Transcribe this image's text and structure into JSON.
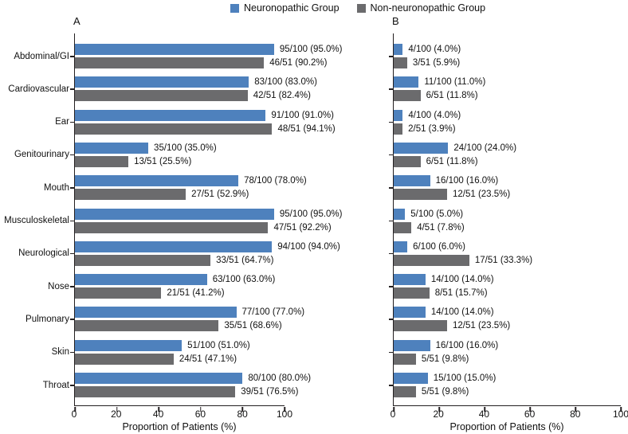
{
  "legend": {
    "items": [
      {
        "label": "Neuronopathic Group",
        "color": "#4e81bd"
      },
      {
        "label": "Non-neuronopathic Group",
        "color": "#6b6b6d"
      }
    ]
  },
  "chart_data": [
    {
      "type": "bar",
      "panel_label": "A",
      "orientation": "horizontal",
      "xlabel": "Proportion of Patients (%)",
      "xlim": [
        0,
        100
      ],
      "xticks": [
        0,
        20,
        40,
        60,
        80,
        100
      ],
      "grid": false,
      "show_category_labels": true,
      "categories": [
        "Abdominal/GI",
        "Cardiovascular",
        "Ear",
        "Genitourinary",
        "Mouth",
        "Musculoskeletal",
        "Neurological",
        "Nose",
        "Pulmonary",
        "Skin",
        "Throat"
      ],
      "series": [
        {
          "name": "Neuronopathic Group",
          "color": "#4e81bd",
          "values": [
            95.0,
            83.0,
            91.0,
            35.0,
            78.0,
            95.0,
            94.0,
            63.0,
            77.0,
            51.0,
            80.0
          ],
          "labels": [
            "95/100 (95.0%)",
            "83/100 (83.0%)",
            "91/100 (91.0%)",
            "35/100 (35.0%)",
            "78/100 (78.0%)",
            "95/100 (95.0%)",
            "94/100 (94.0%)",
            "63/100 (63.0%)",
            "77/100 (77.0%)",
            "51/100 (51.0%)",
            "80/100 (80.0%)"
          ]
        },
        {
          "name": "Non-neuronopathic Group",
          "color": "#6b6b6d",
          "values": [
            90.2,
            82.4,
            94.1,
            25.5,
            52.9,
            92.2,
            64.7,
            41.2,
            68.6,
            47.1,
            76.5
          ],
          "labels": [
            "46/51 (90.2%)",
            "42/51 (82.4%)",
            "48/51 (94.1%)",
            "13/51 (25.5%)",
            "27/51 (52.9%)",
            "47/51 (92.2%)",
            "33/51 (64.7%)",
            "21/51 (41.2%)",
            "35/51 (68.6%)",
            "24/51 (47.1%)",
            "39/51 (76.5%)"
          ]
        }
      ]
    },
    {
      "type": "bar",
      "panel_label": "B",
      "orientation": "horizontal",
      "xlabel": "Proportion of Patients (%)",
      "xlim": [
        0,
        100
      ],
      "xticks": [
        0,
        20,
        40,
        60,
        80,
        100
      ],
      "grid": false,
      "show_category_labels": false,
      "categories": [
        "Abdominal/GI",
        "Cardiovascular",
        "Ear",
        "Genitourinary",
        "Mouth",
        "Musculoskeletal",
        "Neurological",
        "Nose",
        "Pulmonary",
        "Skin",
        "Throat"
      ],
      "series": [
        {
          "name": "Neuronopathic Group",
          "color": "#4e81bd",
          "values": [
            4.0,
            11.0,
            4.0,
            24.0,
            16.0,
            5.0,
            6.0,
            14.0,
            14.0,
            16.0,
            15.0
          ],
          "labels": [
            "4/100 (4.0%)",
            "11/100 (11.0%)",
            "4/100 (4.0%)",
            "24/100 (24.0%)",
            "16/100 (16.0%)",
            "5/100 (5.0%)",
            "6/100 (6.0%)",
            "14/100 (14.0%)",
            "14/100 (14.0%)",
            "16/100 (16.0%)",
            "15/100 (15.0%)"
          ]
        },
        {
          "name": "Non-neuronopathic Group",
          "color": "#6b6b6d",
          "values": [
            5.9,
            11.8,
            3.9,
            11.8,
            23.5,
            7.8,
            33.3,
            15.7,
            23.5,
            9.8,
            9.8
          ],
          "labels": [
            "3/51 (5.9%)",
            "6/51 (11.8%)",
            "2/51 (3.9%)",
            "6/51 (11.8%)",
            "12/51 (23.5%)",
            "4/51 (7.8%)",
            "17/51 (33.3%)",
            "8/51 (15.7%)",
            "12/51 (23.5%)",
            "5/51 (9.8%)",
            "5/51 (9.8%)"
          ]
        }
      ]
    }
  ]
}
